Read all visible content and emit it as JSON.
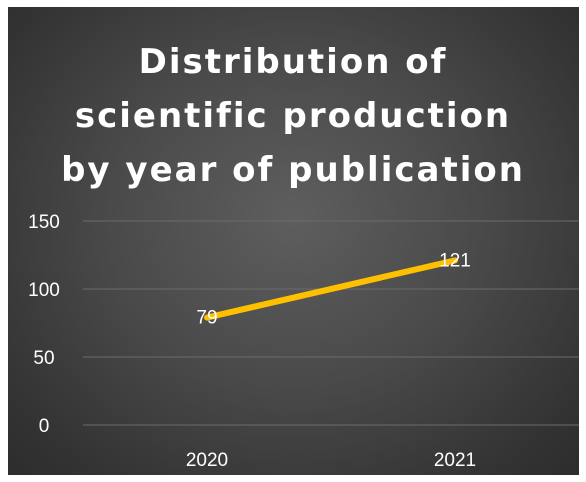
{
  "chart_data": {
    "type": "line",
    "title": "Distribution of scientific production by year of publication",
    "title_lines": [
      "Distribution of",
      "scientific production",
      "by year of publication"
    ],
    "categories": [
      "2020",
      "2021"
    ],
    "series": [
      {
        "values": [
          79,
          121
        ],
        "color": "#FFC000"
      }
    ],
    "data_labels": [
      "79",
      "121"
    ],
    "ylim": [
      0,
      150
    ],
    "yticks": [
      0,
      50,
      100,
      150
    ],
    "ytick_labels": [
      "0",
      "50",
      "100",
      "150"
    ],
    "grid": true,
    "legend": "none",
    "background": "#4a4a4a",
    "gridline_color": "#6b6b6b"
  }
}
